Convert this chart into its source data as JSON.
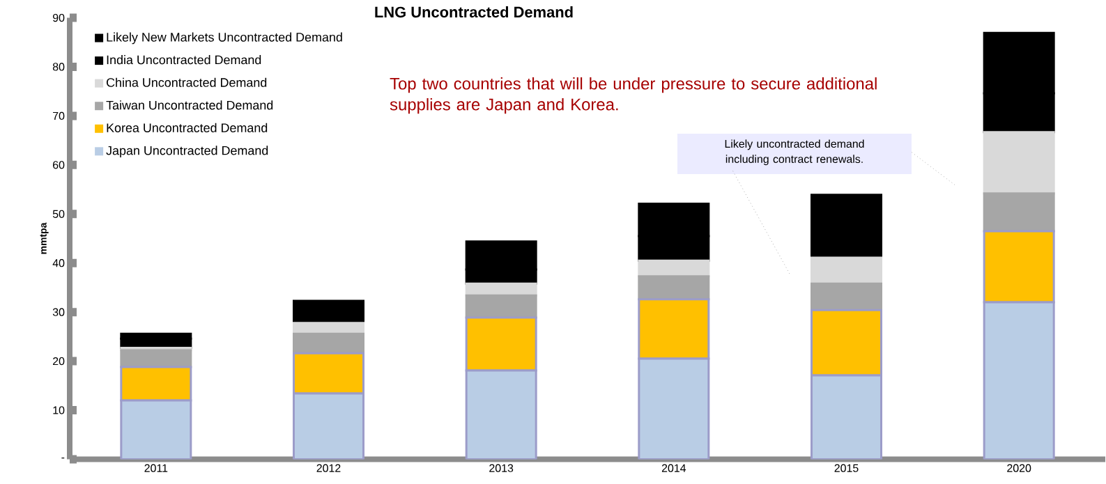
{
  "chart_data": {
    "type": "bar",
    "title": "LNG Uncontracted Demand",
    "ylabel": "mmtpa",
    "categories": [
      "2011",
      "2012",
      "2013",
      "2014",
      "2015",
      "2020"
    ],
    "stacked": true,
    "series": [
      {
        "name": "Japan Uncontracted Demand",
        "color": "#b9cde5",
        "values": [
          12.0,
          13.4,
          18.1,
          20.5,
          17.1,
          32.0
        ]
      },
      {
        "name": "Korea Uncontracted Demand",
        "color": "#ffc000",
        "values": [
          6.8,
          8.2,
          10.8,
          12.1,
          13.3,
          14.5
        ]
      },
      {
        "name": "Taiwan Uncontracted Demand",
        "color": "#a6a6a6",
        "values": [
          3.4,
          4.0,
          4.5,
          4.7,
          5.4,
          7.7
        ]
      },
      {
        "name": "China Uncontracted Demand",
        "color": "#d9d9d9",
        "values": [
          0.5,
          2.2,
          2.4,
          3.2,
          5.3,
          12.5
        ]
      },
      {
        "name": "India Uncontracted Demand",
        "color": "#000000",
        "values": [
          1.9,
          3.5,
          2.9,
          5.0,
          5.6,
          7.9
        ]
      },
      {
        "name": "Likely New Markets Uncontracted Demand",
        "color": "#000000",
        "values": [
          1.0,
          1.0,
          5.7,
          6.6,
          7.2,
          12.3
        ]
      }
    ],
    "ylim": [
      0,
      90
    ],
    "yticks": [
      {
        "value": 0,
        "label": "-"
      },
      10,
      20,
      30,
      40,
      50,
      60,
      70,
      80,
      90
    ],
    "legend": "top left",
    "grid": false,
    "annotations": [
      "Top two countries that will be under pressure to secure additional supplies are Japan and Korea.",
      "Likely uncontracted demand including contract renewals."
    ]
  }
}
